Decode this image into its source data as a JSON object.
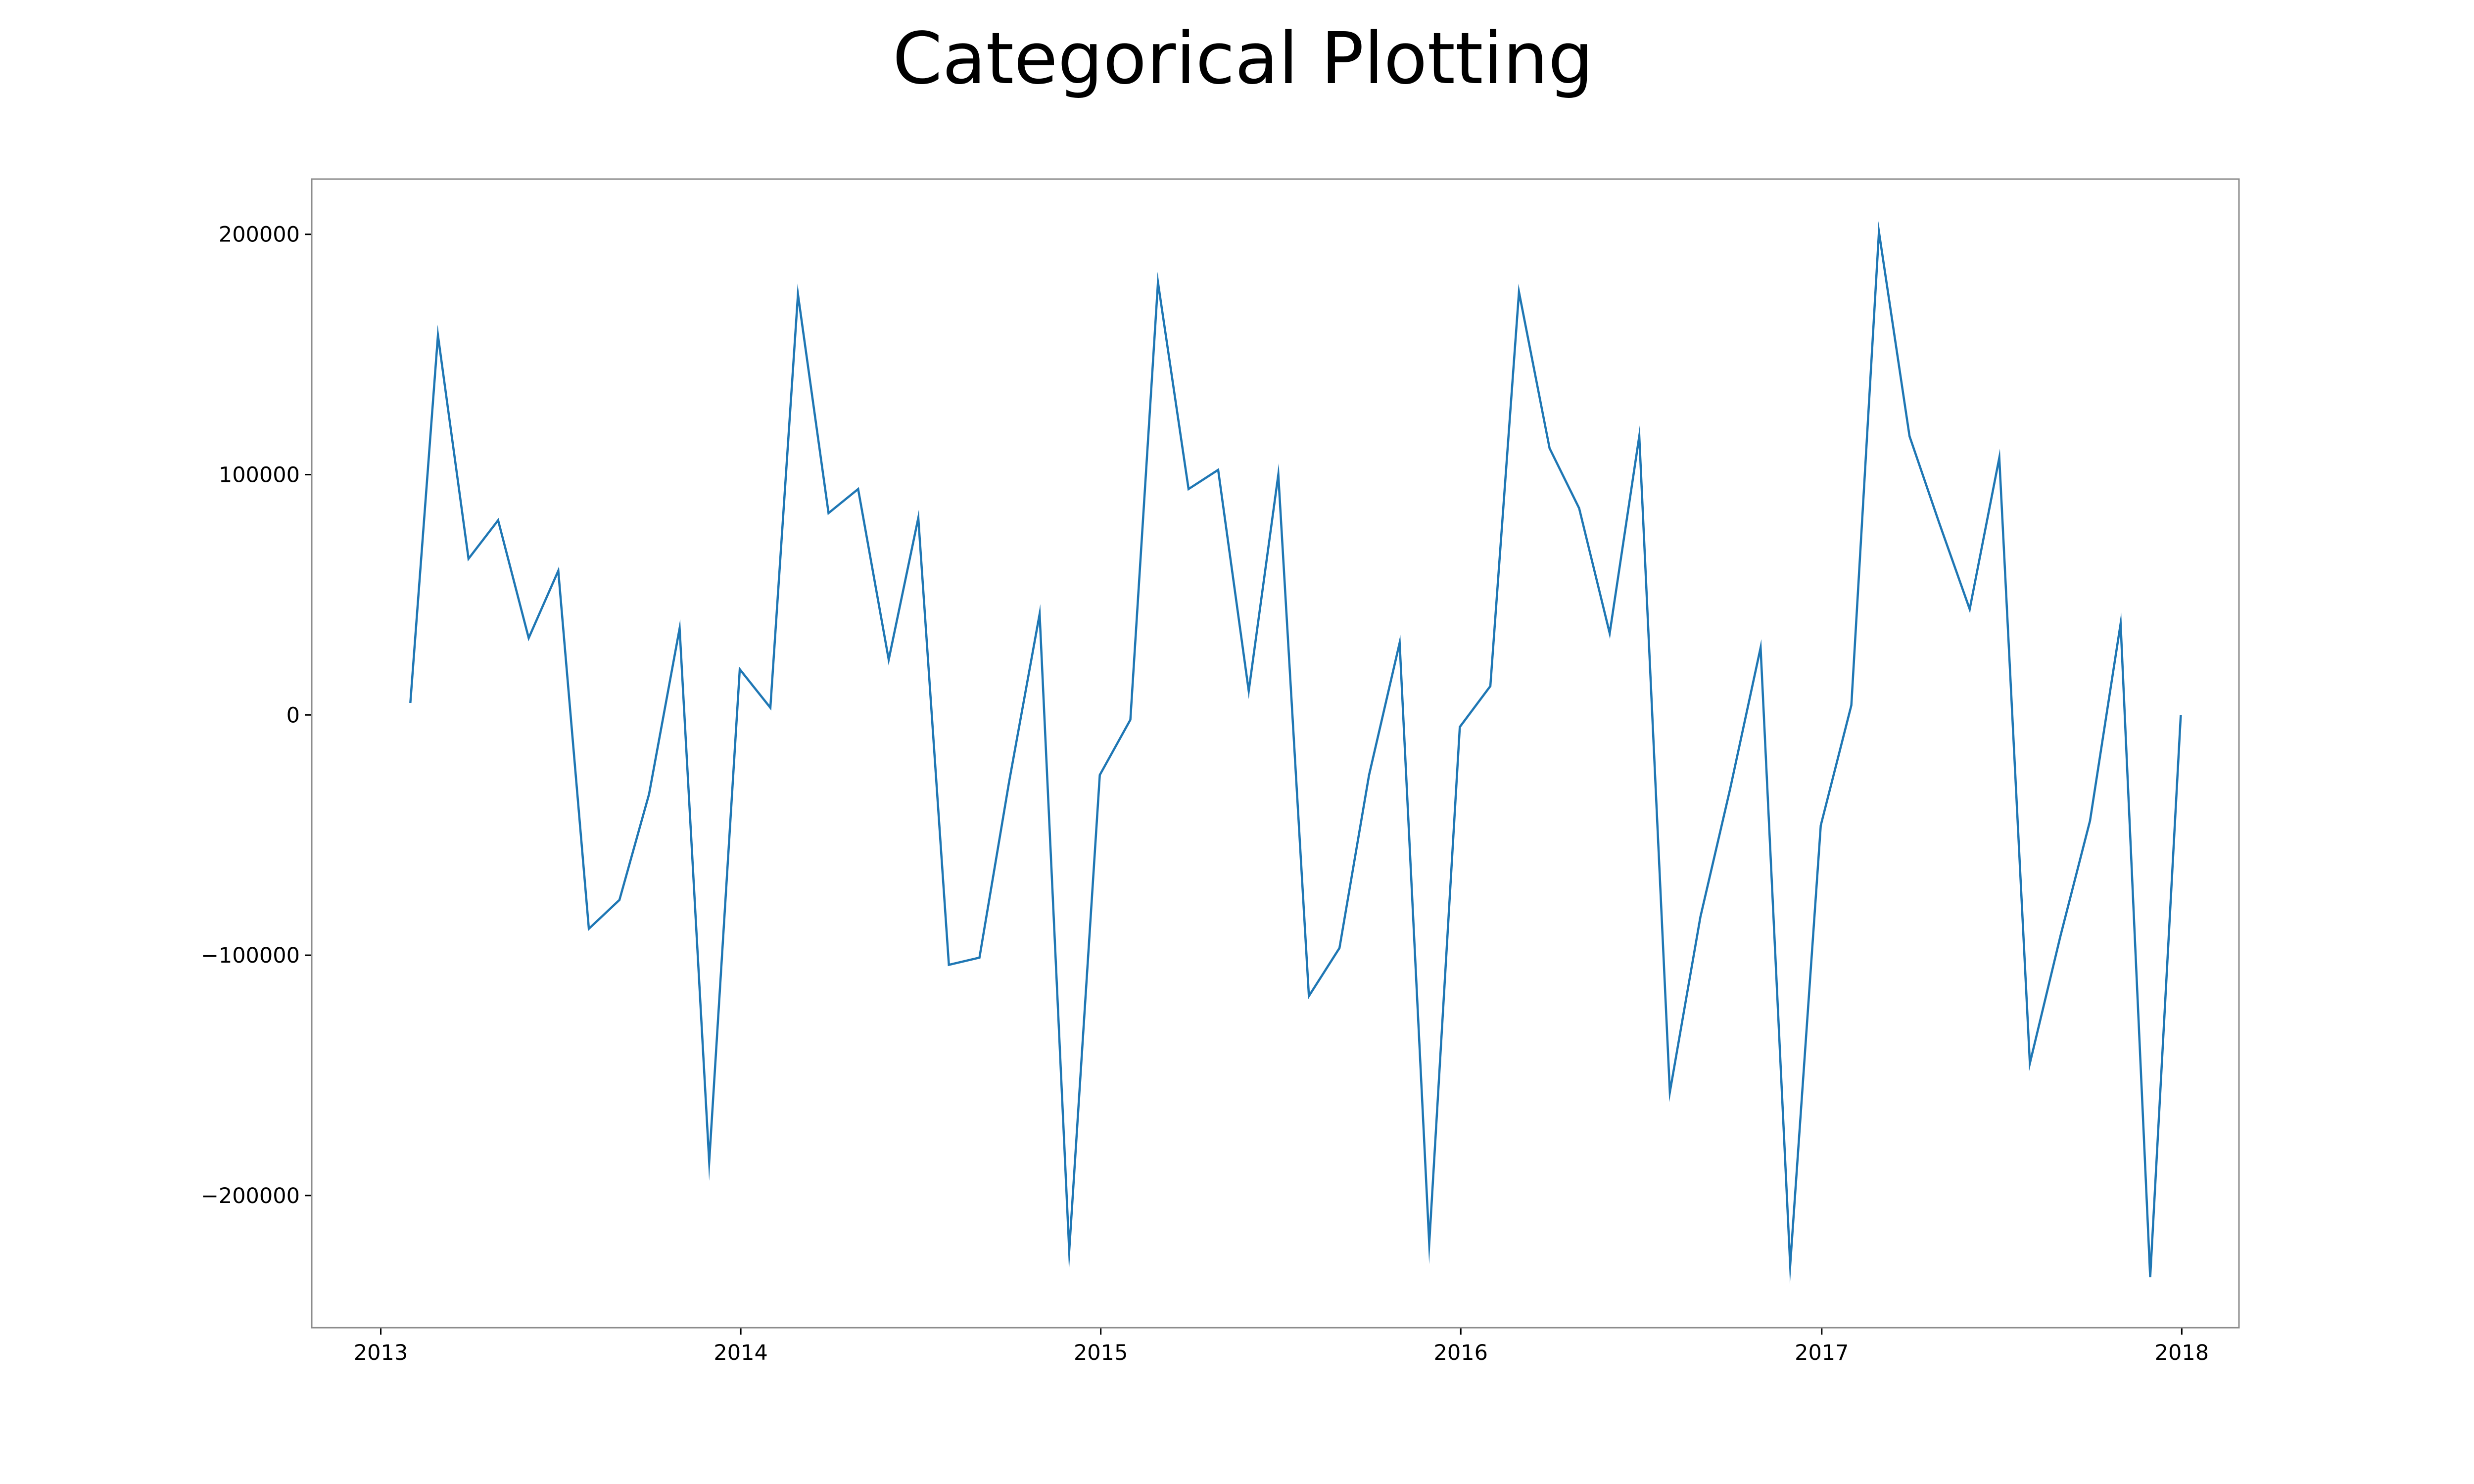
{
  "chart_data": {
    "type": "line",
    "title": "Categorical Plotting",
    "xlabel": "",
    "ylabel": "",
    "grid": false,
    "legend": "none",
    "x_axis": {
      "type": "date",
      "tick_labels": [
        "2013",
        "2014",
        "2015",
        "2016",
        "2017",
        "2018"
      ]
    },
    "y_axis": {
      "tick_values": [
        -200000,
        -100000,
        0,
        100000,
        200000
      ],
      "tick_labels": [
        "−200000",
        "−100000",
        "0",
        "100000",
        "200000"
      ]
    },
    "xlim": [
      "2012-10-23",
      "2018-02-28"
    ],
    "ylim": [
      -255000,
      223000
    ],
    "series": [
      {
        "color": "#1f77b4",
        "x": [
          "2013-01-31",
          "2013-02-28",
          "2013-03-31",
          "2013-04-30",
          "2013-05-31",
          "2013-06-30",
          "2013-07-31",
          "2013-08-31",
          "2013-09-30",
          "2013-10-31",
          "2013-11-30",
          "2013-12-31",
          "2014-01-31",
          "2014-02-28",
          "2014-03-31",
          "2014-04-30",
          "2014-05-31",
          "2014-06-30",
          "2014-07-31",
          "2014-08-31",
          "2014-09-30",
          "2014-10-31",
          "2014-11-30",
          "2014-12-31",
          "2015-01-31",
          "2015-02-28",
          "2015-03-31",
          "2015-04-30",
          "2015-05-31",
          "2015-06-30",
          "2015-07-31",
          "2015-08-31",
          "2015-09-30",
          "2015-10-31",
          "2015-11-30",
          "2015-12-31",
          "2016-01-31",
          "2016-02-29",
          "2016-03-31",
          "2016-04-30",
          "2016-05-31",
          "2016-06-30",
          "2016-07-31",
          "2016-08-31",
          "2016-09-30",
          "2016-10-31",
          "2016-11-30",
          "2016-12-31",
          "2017-01-31",
          "2017-02-28",
          "2017-03-31",
          "2017-04-30",
          "2017-05-31",
          "2017-06-30",
          "2017-07-31",
          "2017-08-31",
          "2017-09-30",
          "2017-10-31",
          "2017-11-30",
          "2017-12-31"
        ],
        "y": [
          5000,
          158000,
          65000,
          81000,
          32000,
          60000,
          -89000,
          -77000,
          -33000,
          36000,
          -186000,
          19000,
          3000,
          175000,
          84000,
          94000,
          23000,
          82000,
          -104000,
          -101000,
          -28000,
          42000,
          -223000,
          -25000,
          -2000,
          180000,
          94000,
          102000,
          10000,
          100000,
          -117000,
          -97000,
          -25000,
          30000,
          -220000,
          -5000,
          12000,
          176000,
          111000,
          86000,
          34000,
          116000,
          -157000,
          -84000,
          -31000,
          28000,
          -229000,
          -46000,
          4000,
          201000,
          116000,
          80000,
          44000,
          107000,
          -145000,
          -92000,
          -44000,
          38000,
          -234000,
          0
        ]
      }
    ]
  }
}
